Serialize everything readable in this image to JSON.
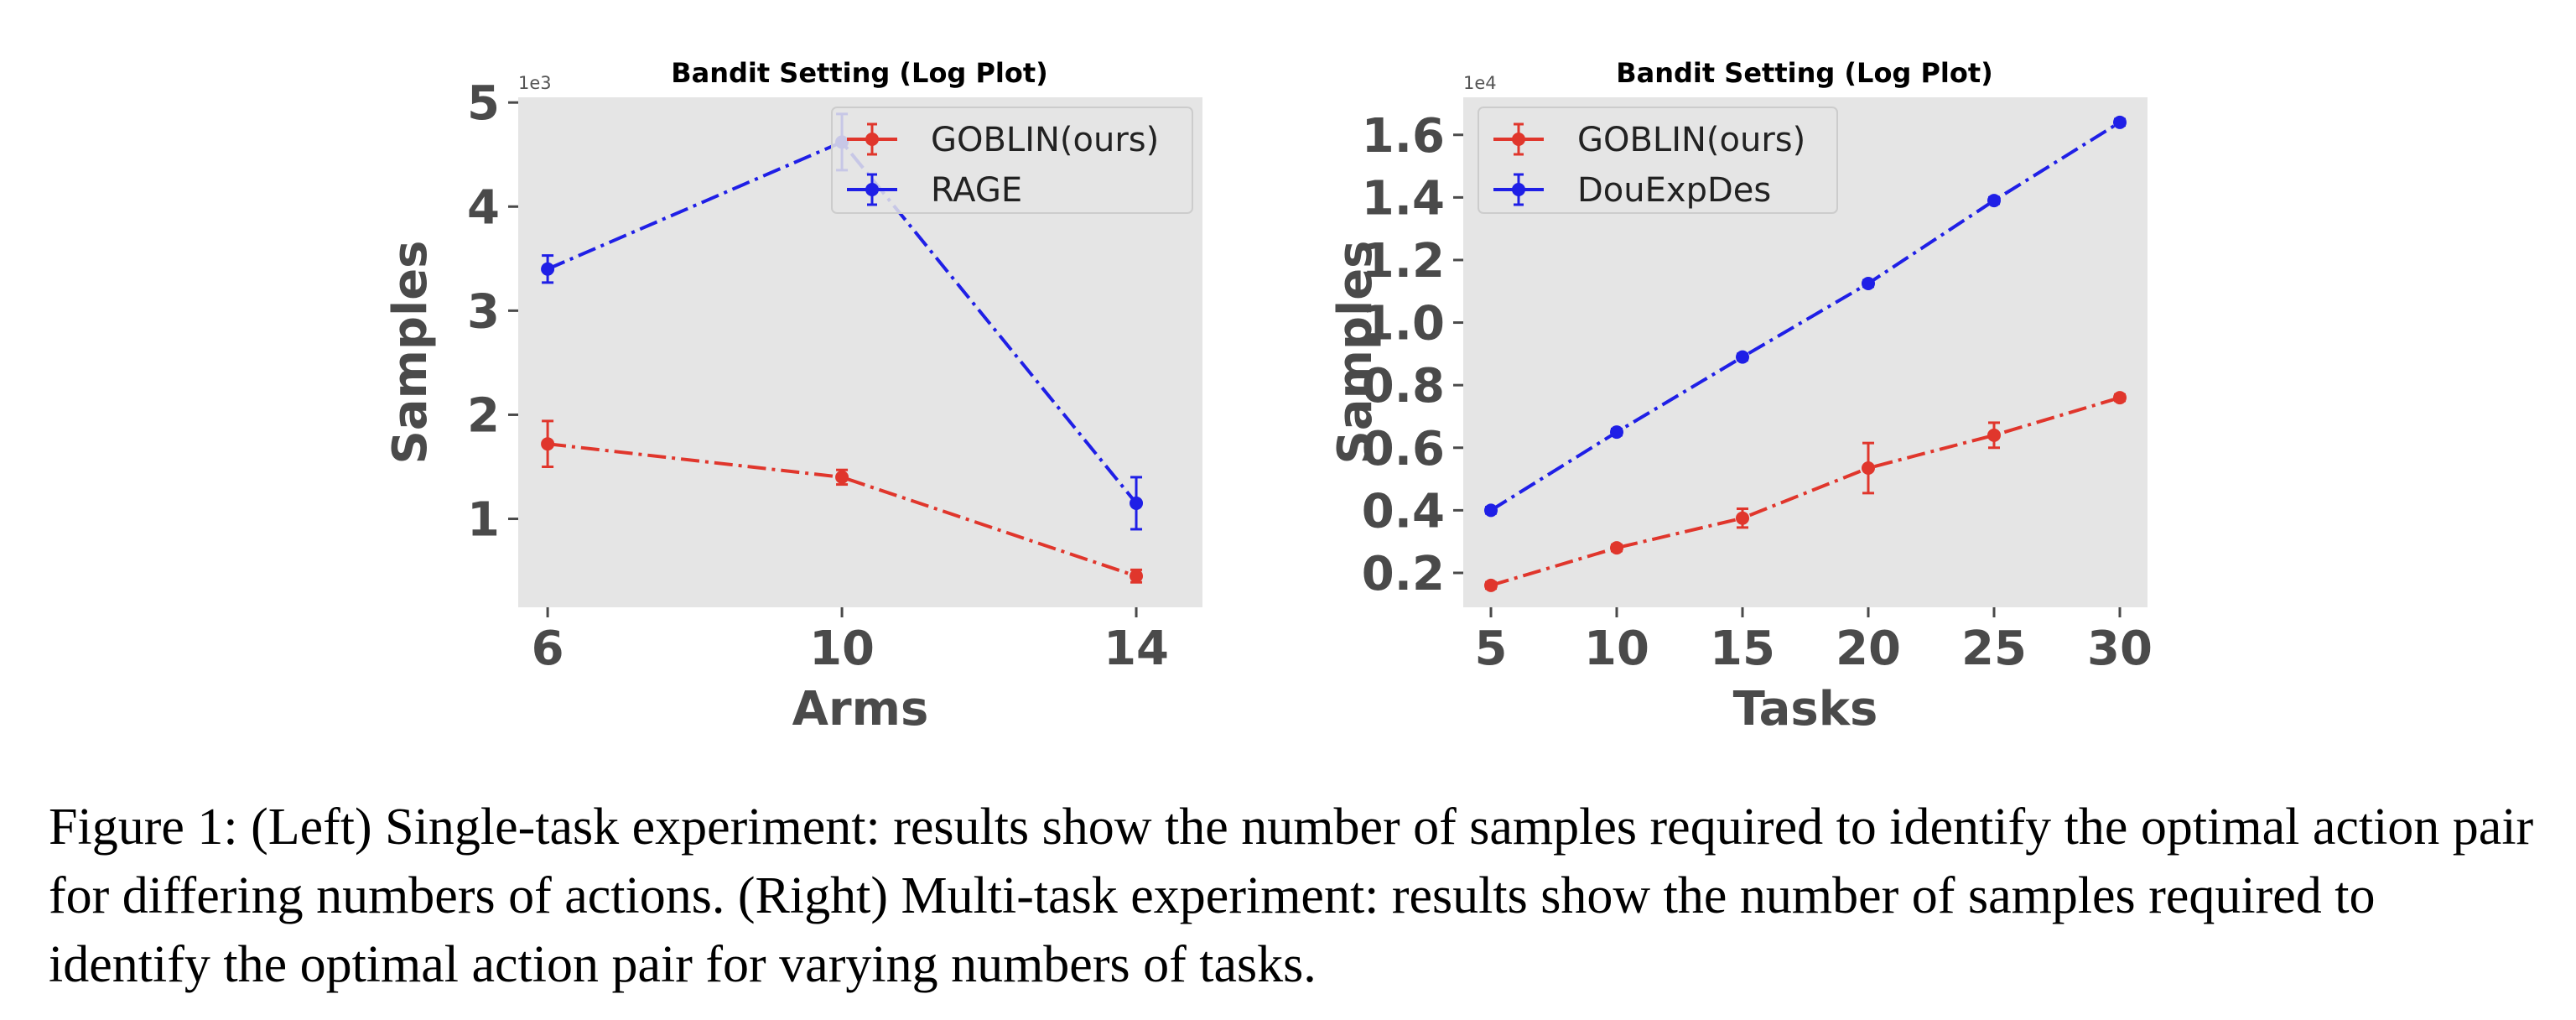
{
  "chart_data": [
    {
      "type": "line",
      "title": "Bandit Setting (Log Plot)",
      "xlabel": "Arms",
      "ylabel": "Samples",
      "y_offset_text": "1e3",
      "x": [
        6,
        10,
        14
      ],
      "x_ticks": [
        "6",
        "10",
        "14"
      ],
      "y_ticks": [
        "1",
        "2",
        "3",
        "4",
        "5"
      ],
      "xlim": [
        5.6,
        14.9
      ],
      "ylim": [
        0.15,
        5.05
      ],
      "grid": false,
      "legend_position": "top-right",
      "series": [
        {
          "name": "GOBLIN(ours)",
          "color": "#e0362c",
          "values": [
            1.72,
            1.4,
            0.45
          ],
          "errors": [
            0.22,
            0.07,
            0.06
          ]
        },
        {
          "name": "RAGE",
          "color": "#1f1fe6",
          "values": [
            3.4,
            4.62,
            1.15
          ],
          "errors": [
            0.13,
            0.27,
            0.25
          ]
        }
      ]
    },
    {
      "type": "line",
      "title": "Bandit Setting (Log Plot)",
      "xlabel": "Tasks",
      "ylabel": "Samples",
      "y_offset_text": "1e4",
      "x": [
        5,
        10,
        15,
        20,
        25,
        30
      ],
      "x_ticks": [
        "5",
        "10",
        "15",
        "20",
        "25",
        "30"
      ],
      "y_ticks": [
        "0.2",
        "0.4",
        "0.6",
        "0.8",
        "1.0",
        "1.2",
        "1.4",
        "1.6"
      ],
      "xlim": [
        3.9,
        31.1
      ],
      "ylim": [
        0.09,
        1.72
      ],
      "grid": false,
      "legend_position": "top-left",
      "series": [
        {
          "name": "GOBLIN(ours)",
          "color": "#e0362c",
          "values": [
            0.16,
            0.28,
            0.375,
            0.535,
            0.64,
            0.76
          ],
          "errors": [
            0.01,
            0.01,
            0.03,
            0.08,
            0.04,
            0.01
          ]
        },
        {
          "name": "DouExpDes",
          "color": "#1f1fe6",
          "values": [
            0.4,
            0.65,
            0.89,
            1.125,
            1.39,
            1.64
          ],
          "errors": [
            0.01,
            0.01,
            0.01,
            0.01,
            0.01,
            0.01
          ]
        }
      ]
    }
  ],
  "caption": "Figure 1: (Left) Single-task experiment: results show the number of samples required to identify the optimal action pair for differing numbers of actions. (Right) Multi-task experiment: results show the number of samples required to identify the optimal action pair for varying numbers of tasks."
}
